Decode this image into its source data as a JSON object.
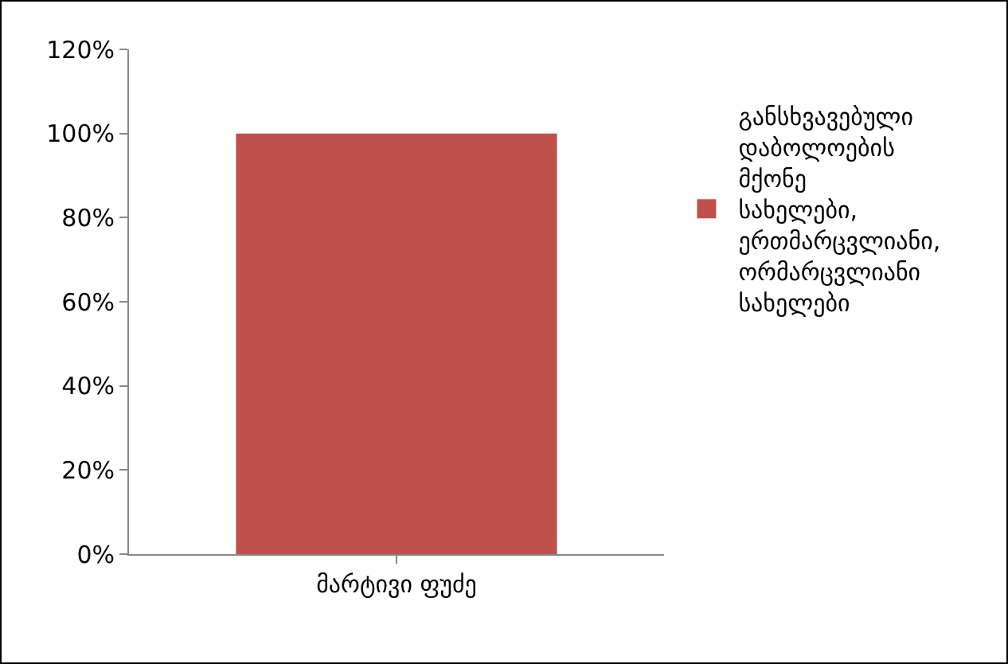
{
  "chart_data": {
    "type": "bar",
    "categories": [
      "მარტივი ფუძე"
    ],
    "series": [
      {
        "name": "განსხვავებული დაბოლოების მქონე სახელები, ერთმარცვლიანი, ორმარცვლიანი სახელები",
        "color": "#c0504d",
        "values": [
          100
        ]
      }
    ],
    "ylim": [
      0,
      120
    ],
    "yticks": [
      {
        "value": 0,
        "label": "0%"
      },
      {
        "value": 20,
        "label": "20%"
      },
      {
        "value": 40,
        "label": "40%"
      },
      {
        "value": 60,
        "label": "60%"
      },
      {
        "value": 80,
        "label": "80%"
      },
      {
        "value": 100,
        "label": "100%"
      },
      {
        "value": 120,
        "label": "120%"
      }
    ],
    "grid": false,
    "legend": "right"
  }
}
